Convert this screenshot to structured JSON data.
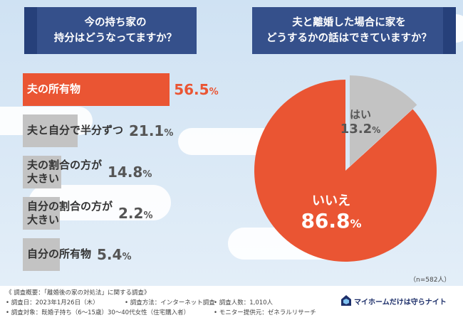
{
  "left_chart": {
    "title_line1": "今の持ち家の",
    "title_line2": "持分はどうなってますか？"
  },
  "right_chart": {
    "title_line1": "夫と離婚した場合に家を",
    "title_line2": "どうするかの話はできていますか？",
    "sample_size": "（n=582人）"
  },
  "chart_data": [
    {
      "type": "bar",
      "orientation": "horizontal",
      "categories": [
        "夫の所有物",
        "夫と自分で半分ずつ",
        "夫の割合の方が大きい",
        "自分の割合の方が大きい",
        "自分の所有物"
      ],
      "category_lines": [
        [
          "夫の所有物"
        ],
        [
          "夫と自分で半分ずつ"
        ],
        [
          "夫の割合の方が",
          "大きい"
        ],
        [
          "自分の割合の方が",
          "大きい"
        ],
        [
          "自分の所有物"
        ]
      ],
      "values": [
        56.5,
        21.1,
        14.8,
        2.2,
        5.4
      ],
      "value_labels": [
        "56.5",
        "21.1",
        "14.8",
        "2.2",
        "5.4"
      ],
      "unit": "%",
      "highlight_color": "#ea5533",
      "base_color": "#c3c3c3"
    },
    {
      "type": "pie",
      "labels": [
        "はい",
        "いいえ"
      ],
      "values": [
        13.2,
        86.8
      ],
      "value_labels": [
        "13.2",
        "86.8"
      ],
      "unit": "%",
      "colors": [
        "#c3c3c3",
        "#ea5533"
      ]
    }
  ],
  "footer": {
    "line1": "《 調査概要：「離婚後の家の対処法」に関する調査》",
    "line2a": "• 調査日：2023年1月26日（木）",
    "line2b": "• 調査方法：インターネット調査",
    "line2c": "• 調査人数：1,010人",
    "line3a": "• 調査対象：既婚子持ち（6〜15歳）30〜40代女性（住宅購入者）",
    "line3b": "• モニター提供元：ゼネラルリサーチ",
    "brand": "マイホームだけは守らナイト",
    "brand_icon": "house-shield-icon"
  }
}
